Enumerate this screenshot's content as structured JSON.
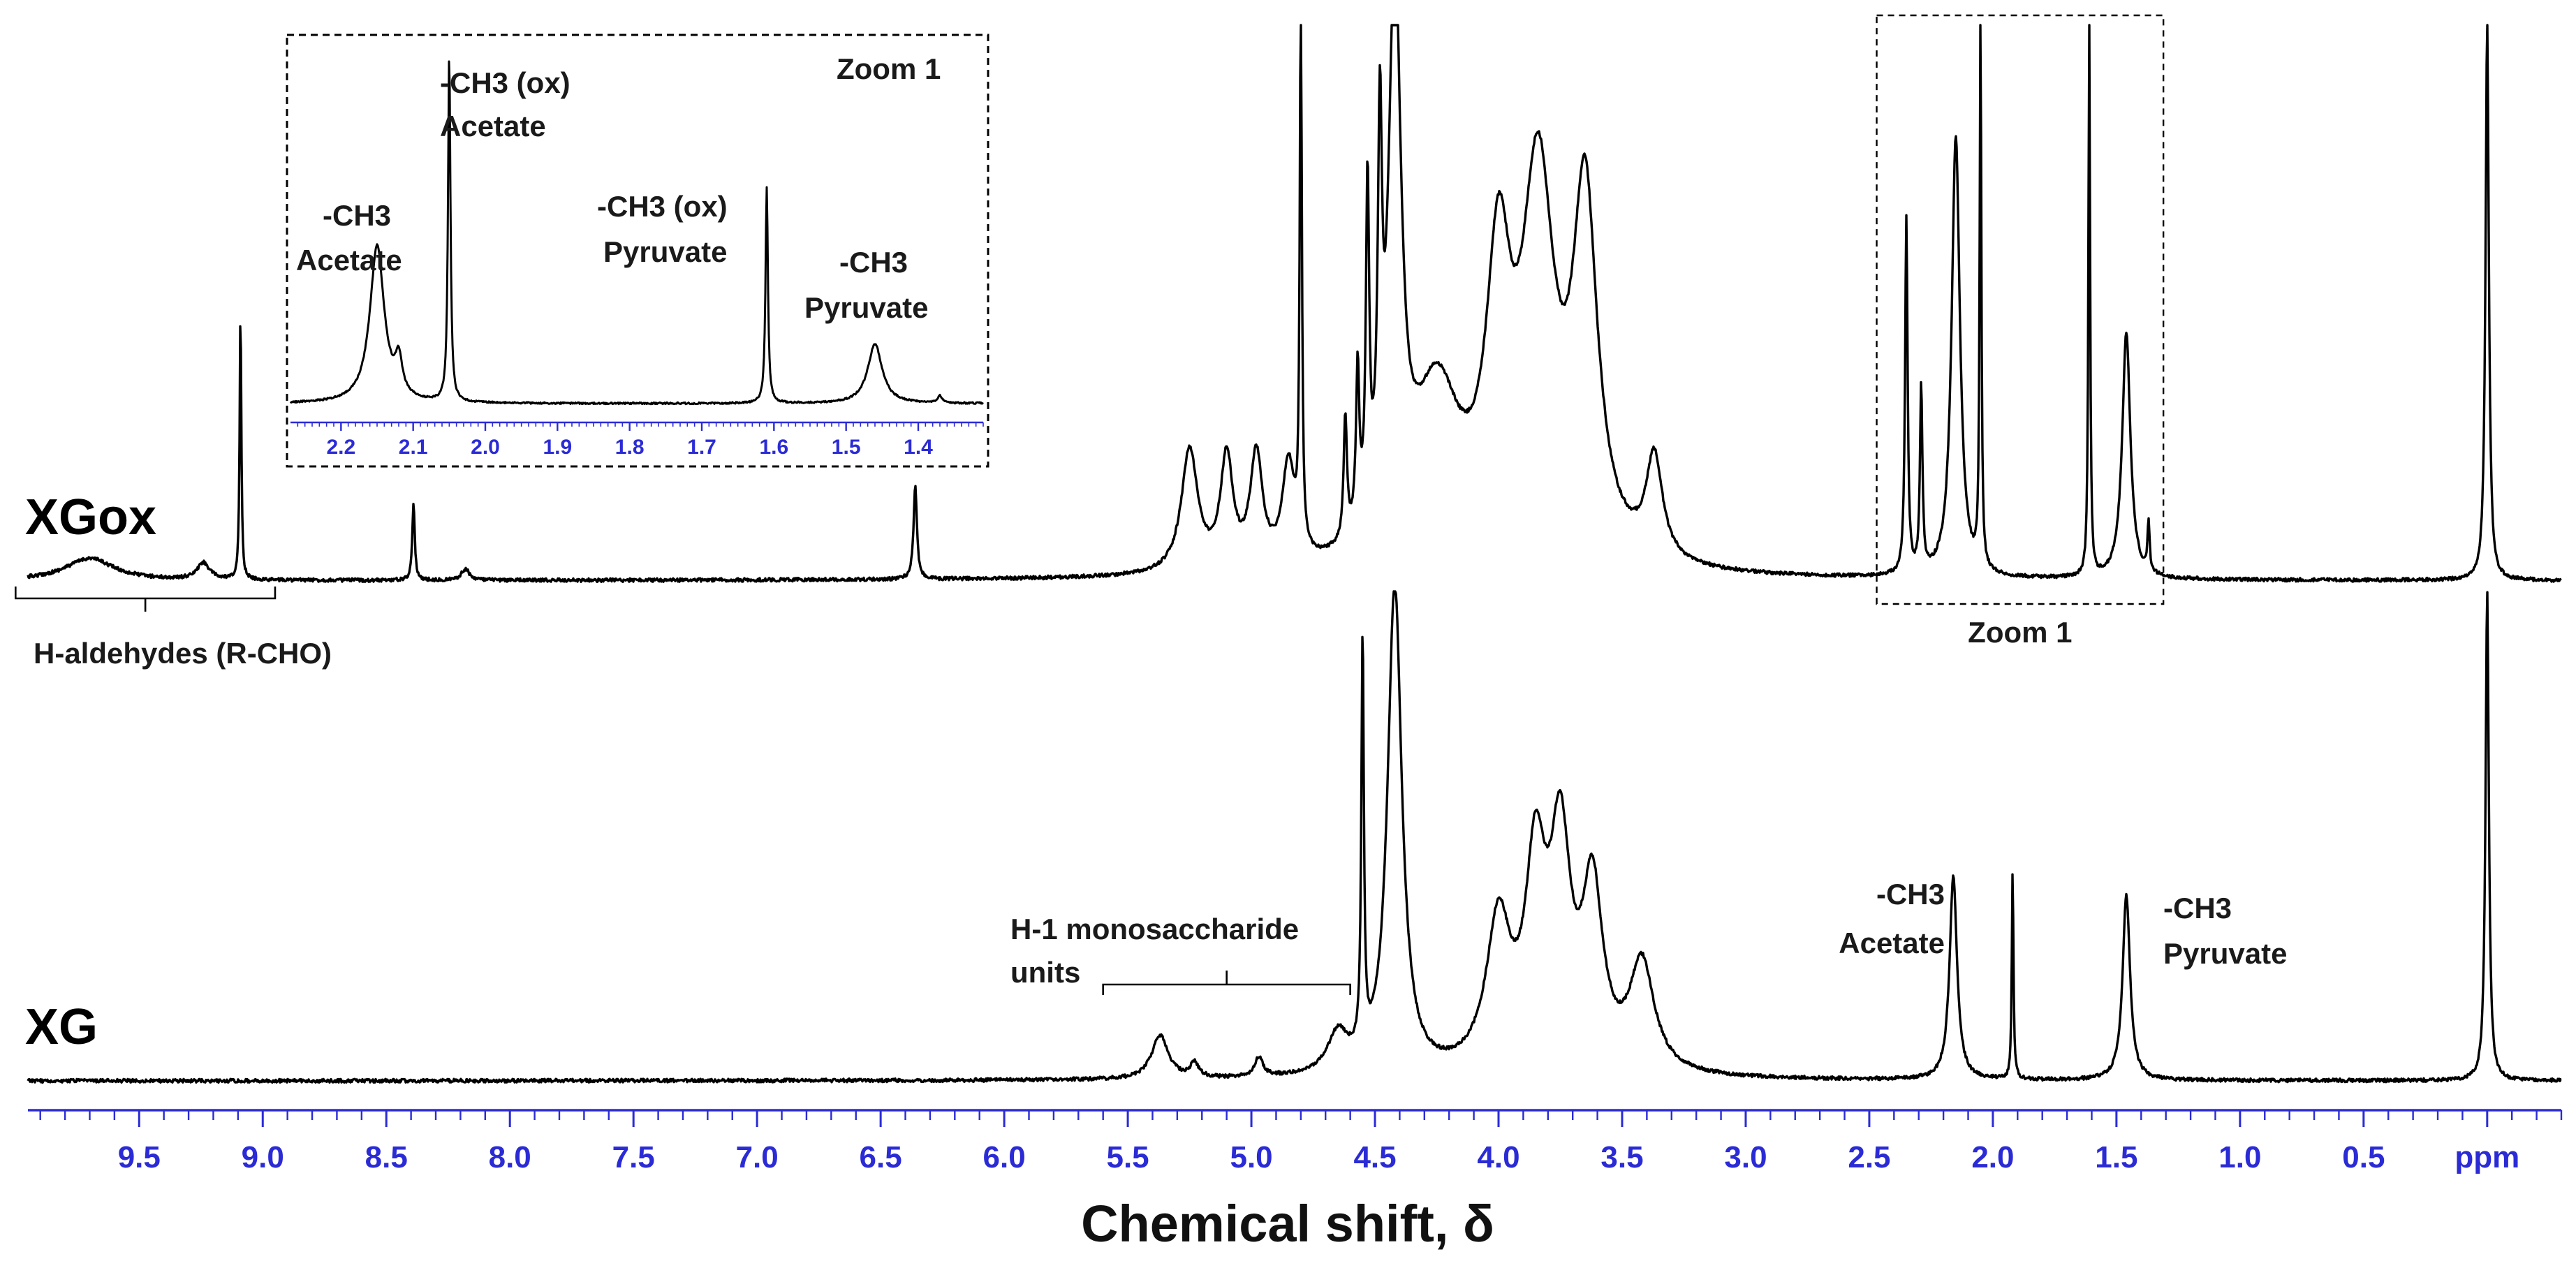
{
  "chart_data": {
    "type": "line",
    "title": "",
    "xlabel": "Chemical shift, δ",
    "x_unit": "ppm",
    "xlim": [
      9.95,
      -0.3
    ],
    "x_direction": "reversed",
    "x_ticks": [
      "9.5",
      "9.0",
      "8.5",
      "8.0",
      "7.5",
      "7.0",
      "6.5",
      "6.0",
      "5.5",
      "5.0",
      "4.5",
      "4.0",
      "3.5",
      "3.0",
      "2.5",
      "2.0",
      "1.5",
      "1.0",
      "0.5",
      "ppm"
    ],
    "x_tick_values": [
      9.5,
      9.0,
      8.5,
      8.0,
      7.5,
      7.0,
      6.5,
      6.0,
      5.5,
      5.0,
      4.5,
      4.0,
      3.5,
      3.0,
      2.5,
      2.0,
      1.5,
      1.0,
      0.5,
      0.0
    ],
    "y_unit": "relative intensity",
    "series": [
      {
        "name": "XGox",
        "label": "XGox",
        "ylim": [
          0,
          1
        ],
        "peaks": [
          {
            "shift": 9.7,
            "height": 0.04,
            "width": 0.12
          },
          {
            "shift": 9.24,
            "height": 0.03,
            "width": 0.03
          },
          {
            "shift": 9.09,
            "height": 0.49,
            "width": 0.004
          },
          {
            "shift": 8.39,
            "height": 0.14,
            "width": 0.006
          },
          {
            "shift": 8.18,
            "height": 0.02,
            "width": 0.02
          },
          {
            "shift": 6.36,
            "height": 0.17,
            "width": 0.008
          },
          {
            "shift": 5.25,
            "height": 0.22,
            "width": 0.04
          },
          {
            "shift": 5.1,
            "height": 0.2,
            "width": 0.03
          },
          {
            "shift": 4.98,
            "height": 0.2,
            "width": 0.03
          },
          {
            "shift": 4.85,
            "height": 0.18,
            "width": 0.03
          },
          {
            "shift": 4.8,
            "height": 1.0,
            "width": 0.005
          },
          {
            "shift": 4.62,
            "height": 0.22,
            "width": 0.008
          },
          {
            "shift": 4.57,
            "height": 0.28,
            "width": 0.008
          },
          {
            "shift": 4.53,
            "height": 0.59,
            "width": 0.008
          },
          {
            "shift": 4.48,
            "height": 0.62,
            "width": 0.01
          },
          {
            "shift": 4.42,
            "height": 1.0,
            "width": 0.03
          },
          {
            "shift": 4.25,
            "height": 0.3,
            "width": 0.12
          },
          {
            "shift": 4.0,
            "height": 0.48,
            "width": 0.06
          },
          {
            "shift": 3.84,
            "height": 0.66,
            "width": 0.08
          },
          {
            "shift": 3.65,
            "height": 0.63,
            "width": 0.06
          },
          {
            "shift": 3.37,
            "height": 0.18,
            "width": 0.04
          },
          {
            "shift": 2.35,
            "height": 0.64,
            "width": 0.006
          },
          {
            "shift": 2.29,
            "height": 0.33,
            "width": 0.006
          },
          {
            "shift": 2.15,
            "height": 0.79,
            "width": 0.02
          },
          {
            "shift": 2.05,
            "height": 1.0,
            "width": 0.004
          },
          {
            "shift": 1.61,
            "height": 1.0,
            "width": 0.004
          },
          {
            "shift": 1.46,
            "height": 0.44,
            "width": 0.02
          },
          {
            "shift": 1.37,
            "height": 0.09,
            "width": 0.005
          },
          {
            "shift": 0.0,
            "height": 1.0,
            "width": 0.008
          }
        ]
      },
      {
        "name": "XG",
        "label": "XG",
        "ylim": [
          0,
          1
        ],
        "peaks": [
          {
            "shift": 5.37,
            "height": 0.09,
            "width": 0.04
          },
          {
            "shift": 5.23,
            "height": 0.03,
            "width": 0.02
          },
          {
            "shift": 4.97,
            "height": 0.04,
            "width": 0.02
          },
          {
            "shift": 4.65,
            "height": 0.08,
            "width": 0.05
          },
          {
            "shift": 4.55,
            "height": 0.84,
            "width": 0.006
          },
          {
            "shift": 4.42,
            "height": 1.0,
            "width": 0.035
          },
          {
            "shift": 4.0,
            "height": 0.3,
            "width": 0.06
          },
          {
            "shift": 3.85,
            "height": 0.4,
            "width": 0.05
          },
          {
            "shift": 3.75,
            "height": 0.44,
            "width": 0.05
          },
          {
            "shift": 3.62,
            "height": 0.36,
            "width": 0.05
          },
          {
            "shift": 3.42,
            "height": 0.22,
            "width": 0.06
          },
          {
            "shift": 2.16,
            "height": 0.42,
            "width": 0.018
          },
          {
            "shift": 1.92,
            "height": 0.43,
            "width": 0.004
          },
          {
            "shift": 1.46,
            "height": 0.38,
            "width": 0.018
          },
          {
            "shift": 0.0,
            "height": 1.0,
            "width": 0.008
          }
        ]
      }
    ],
    "annotations": [
      {
        "name": "aldehydes",
        "text": "H-aldehydes (R-CHO)",
        "bracket_from": 10.0,
        "bracket_to": 8.95,
        "series": "XGox"
      },
      {
        "name": "zoom",
        "text": "Zoom 1",
        "box_from": 2.47,
        "box_to": 1.31,
        "series": "XGox"
      },
      {
        "name": "h1",
        "lines": [
          "H-1 monosaccharide",
          "units"
        ],
        "bracket_from": 5.6,
        "bracket_to": 4.6,
        "series": "XG"
      },
      {
        "name": "acetate",
        "lines": [
          "-CH3",
          "Acetate"
        ],
        "at": 2.16,
        "series": "XG"
      },
      {
        "name": "pyruvate",
        "lines": [
          "-CH3",
          "Pyruvate"
        ],
        "at": 1.46,
        "series": "XG"
      }
    ],
    "inset": {
      "title": "Zoom 1",
      "xlim": [
        2.27,
        1.31
      ],
      "x_ticks": [
        "2.2",
        "2.1",
        "2.0",
        "1.9",
        "1.8",
        "1.7",
        "1.6",
        "1.5",
        "1.4"
      ],
      "x_tick_values": [
        2.2,
        2.1,
        2.0,
        1.9,
        1.8,
        1.7,
        1.6,
        1.5,
        1.4
      ],
      "peaks": [
        {
          "shift": 2.15,
          "height": 0.45,
          "width": 0.012
        },
        {
          "shift": 2.12,
          "height": 0.1,
          "width": 0.006
        },
        {
          "shift": 2.05,
          "height": 1.0,
          "width": 0.002
        },
        {
          "shift": 1.61,
          "height": 0.62,
          "width": 0.002
        },
        {
          "shift": 1.46,
          "height": 0.17,
          "width": 0.012
        },
        {
          "shift": 1.37,
          "height": 0.02,
          "width": 0.004
        }
      ],
      "annotations": [
        {
          "name": "ox-acetate",
          "lines": [
            "-CH3 (ox)",
            "Acetate"
          ]
        },
        {
          "name": "acetate",
          "lines": [
            "-CH3",
            "Acetate"
          ]
        },
        {
          "name": "ox-pyruvate",
          "lines": [
            "-CH3 (ox)",
            "Pyruvate"
          ]
        },
        {
          "name": "pyruvate",
          "lines": [
            "-CH3",
            "Pyruvate"
          ]
        }
      ]
    }
  }
}
